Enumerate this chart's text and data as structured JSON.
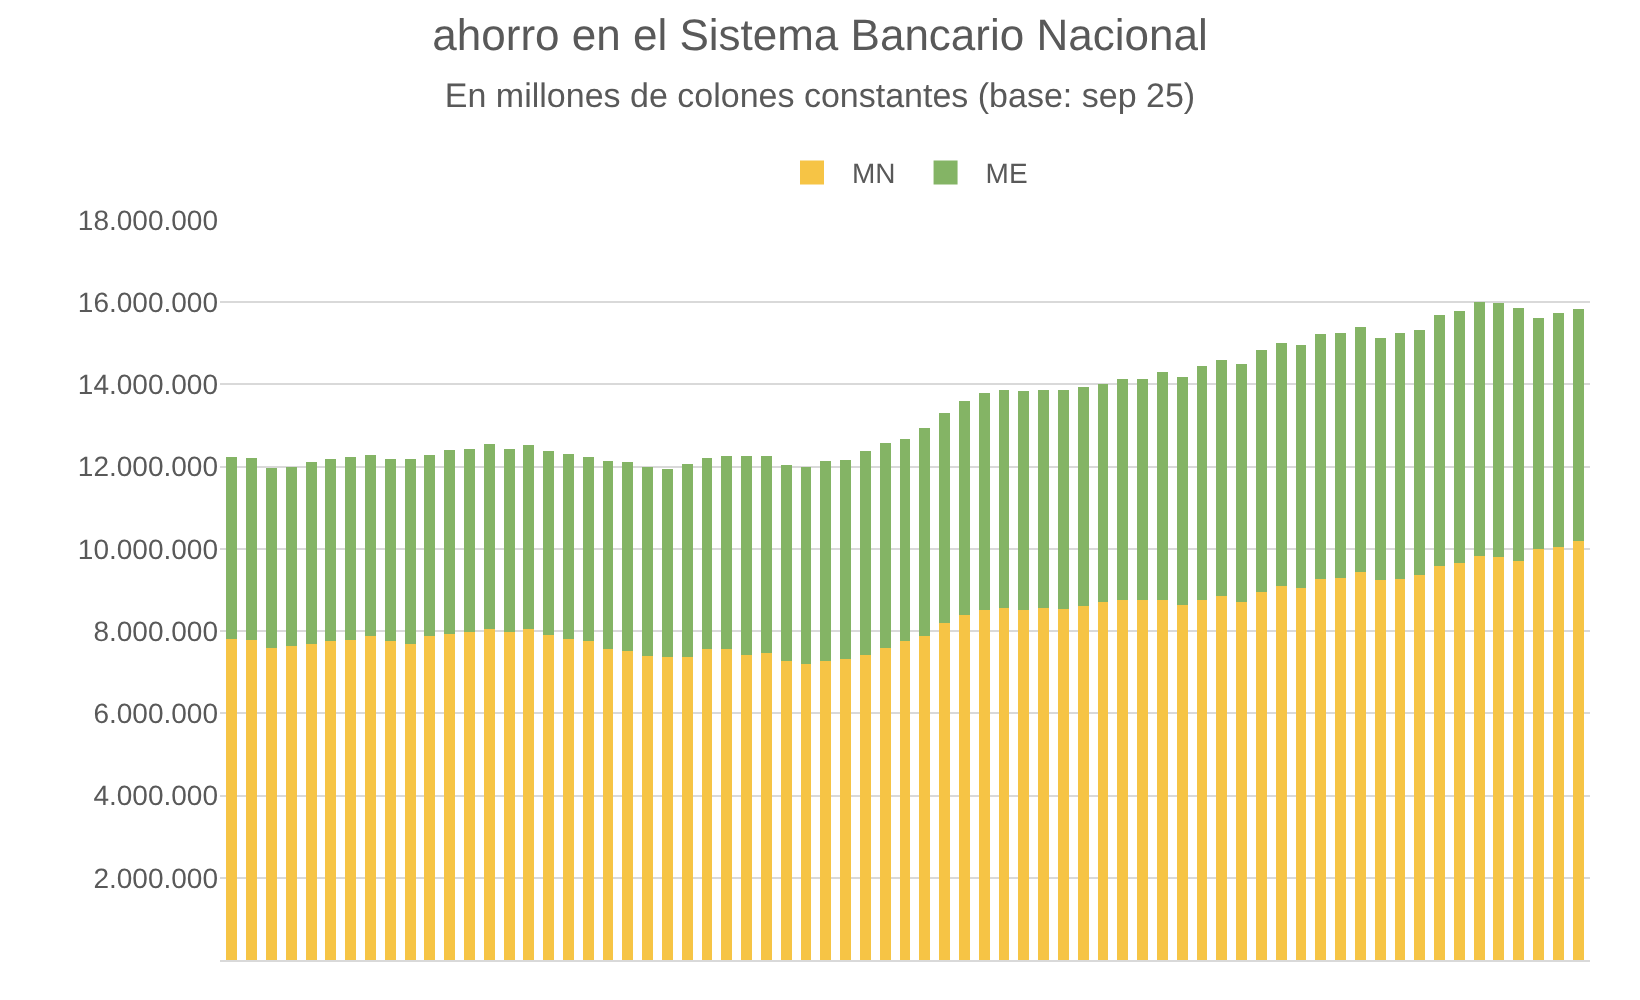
{
  "chart_data": {
    "type": "bar",
    "stacked": true,
    "title": "ahorro en el Sistema Bancario Nacional",
    "subtitle": "En millones de colones constantes (base: sep 25)",
    "categories": [
      null,
      null,
      null,
      null,
      null,
      null,
      null,
      null,
      null,
      null,
      null,
      null,
      null,
      null,
      null,
      null,
      null,
      null,
      null,
      null,
      null,
      null,
      null,
      null,
      null,
      null,
      null,
      null,
      null,
      null,
      null,
      null,
      null,
      null,
      null,
      null,
      null,
      null,
      null,
      null,
      null,
      null,
      null,
      null,
      null,
      null,
      null,
      null,
      null,
      null,
      null,
      null,
      null,
      null,
      null,
      null,
      null,
      null,
      null,
      null,
      null,
      null,
      null,
      null,
      null,
      null,
      null,
      null,
      null
    ],
    "series": [
      {
        "name": "MN",
        "color": "#f6c445",
        "values": [
          7820000,
          7780000,
          7600000,
          7630000,
          7680000,
          7750000,
          7780000,
          7870000,
          7750000,
          7680000,
          7870000,
          7940000,
          7980000,
          8060000,
          7980000,
          8060000,
          7900000,
          7810000,
          7750000,
          7560000,
          7510000,
          7400000,
          7370000,
          7370000,
          7560000,
          7560000,
          7430000,
          7460000,
          7270000,
          7210000,
          7270000,
          7320000,
          7430000,
          7600000,
          7750000,
          7870000,
          8190000,
          8380000,
          8510000,
          8570000,
          8510000,
          8570000,
          8540000,
          8600000,
          8700000,
          8750000,
          8750000,
          8750000,
          8630000,
          8750000,
          8860000,
          8710000,
          8950000,
          9100000,
          9050000,
          9270000,
          9300000,
          9430000,
          9240000,
          9270000,
          9370000,
          9590000,
          9650000,
          9830000,
          9810000,
          9700000,
          9990000,
          10050000,
          10180000
        ]
      },
      {
        "name": "ME",
        "color": "#84b465",
        "values": [
          4420000,
          4420000,
          4370000,
          4370000,
          4430000,
          4440000,
          4460000,
          4420000,
          4440000,
          4510000,
          4420000,
          4470000,
          4450000,
          4500000,
          4450000,
          4460000,
          4480000,
          4510000,
          4490000,
          4580000,
          4600000,
          4600000,
          4570000,
          4700000,
          4640000,
          4710000,
          4820000,
          4790000,
          4780000,
          4790000,
          4870000,
          4850000,
          4940000,
          4970000,
          4930000,
          5080000,
          5110000,
          5210000,
          5280000,
          5290000,
          5320000,
          5300000,
          5330000,
          5340000,
          5300000,
          5380000,
          5390000,
          5550000,
          5560000,
          5690000,
          5730000,
          5780000,
          5880000,
          5900000,
          5920000,
          5950000,
          5940000,
          5970000,
          5900000,
          5970000,
          5960000,
          6090000,
          6140000,
          6170000,
          6170000,
          6170000,
          5630000,
          5700000,
          5660000
        ]
      }
    ],
    "ylim": [
      0,
      18000000
    ],
    "yticks": [
      {
        "value": 2000000,
        "label": "2.000.000"
      },
      {
        "value": 4000000,
        "label": "4.000.000"
      },
      {
        "value": 6000000,
        "label": "6.000.000"
      },
      {
        "value": 8000000,
        "label": "8.000.000"
      },
      {
        "value": 10000000,
        "label": "10.000.000"
      },
      {
        "value": 12000000,
        "label": "12.000.000"
      },
      {
        "value": 14000000,
        "label": "14.000.000"
      },
      {
        "value": 16000000,
        "label": "16.000.000"
      },
      {
        "value": 18000000,
        "label": "18.000.000"
      }
    ],
    "grid": "y",
    "legend": "top"
  }
}
